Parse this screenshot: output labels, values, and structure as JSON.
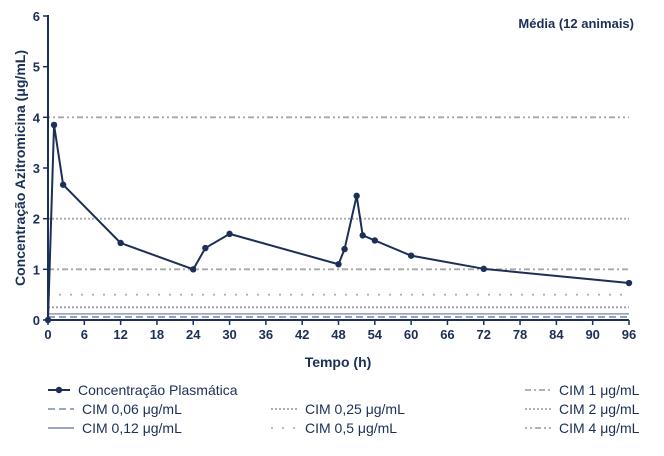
{
  "chart_data": {
    "type": "line",
    "annotation": "Média (12 animais)",
    "xlabel": "Tempo (h)",
    "ylabel": "Concentração Azitromicina (μg/mL)",
    "xlim": [
      0,
      96
    ],
    "ylim": [
      0,
      6
    ],
    "x_ticks": [
      "0",
      "6",
      "12",
      "18",
      "24",
      "30",
      "36",
      "42",
      "48",
      "54",
      "60",
      "66",
      "72",
      "78",
      "84",
      "90",
      "96"
    ],
    "y_ticks": [
      "0",
      "1",
      "2",
      "3",
      "4",
      "5",
      "6"
    ],
    "grid": false,
    "series": [
      {
        "name": "Concentração Plasmática",
        "color": "#1b2f57",
        "x": [
          0,
          1,
          2.5,
          12,
          24,
          26,
          30,
          48,
          49,
          51,
          52,
          54,
          60,
          72,
          96
        ],
        "y": [
          0,
          3.85,
          2.67,
          1.52,
          1.0,
          1.42,
          1.7,
          1.1,
          1.4,
          2.45,
          1.67,
          1.57,
          1.27,
          1.01,
          0.73
        ]
      }
    ],
    "reference_lines": [
      {
        "name": "CIM 0,06 μg/mL",
        "value": 0.06,
        "style": "dashed",
        "color": "#8f99b8"
      },
      {
        "name": "CIM 0,12 μg/mL",
        "value": 0.12,
        "style": "solid",
        "color": "#8f99b8"
      },
      {
        "name": "CIM 0,25 μg/mL",
        "value": 0.25,
        "style": "dotted",
        "color": "#9a9fb0"
      },
      {
        "name": "CIM 0,5 μg/mL",
        "value": 0.5,
        "style": "sparse-dotted",
        "color": "#b0b0b0"
      },
      {
        "name": "CIM 1 μg/mL",
        "value": 1,
        "style": "dash-dot",
        "color": "#a8a8a8"
      },
      {
        "name": "CIM 2 μg/mL",
        "value": 2,
        "style": "dotted",
        "color": "#a8a8a8"
      },
      {
        "name": "CIM 4 μg/mL",
        "value": 4,
        "style": "dot-dot-dash",
        "color": "#a8a8a8"
      }
    ]
  }
}
